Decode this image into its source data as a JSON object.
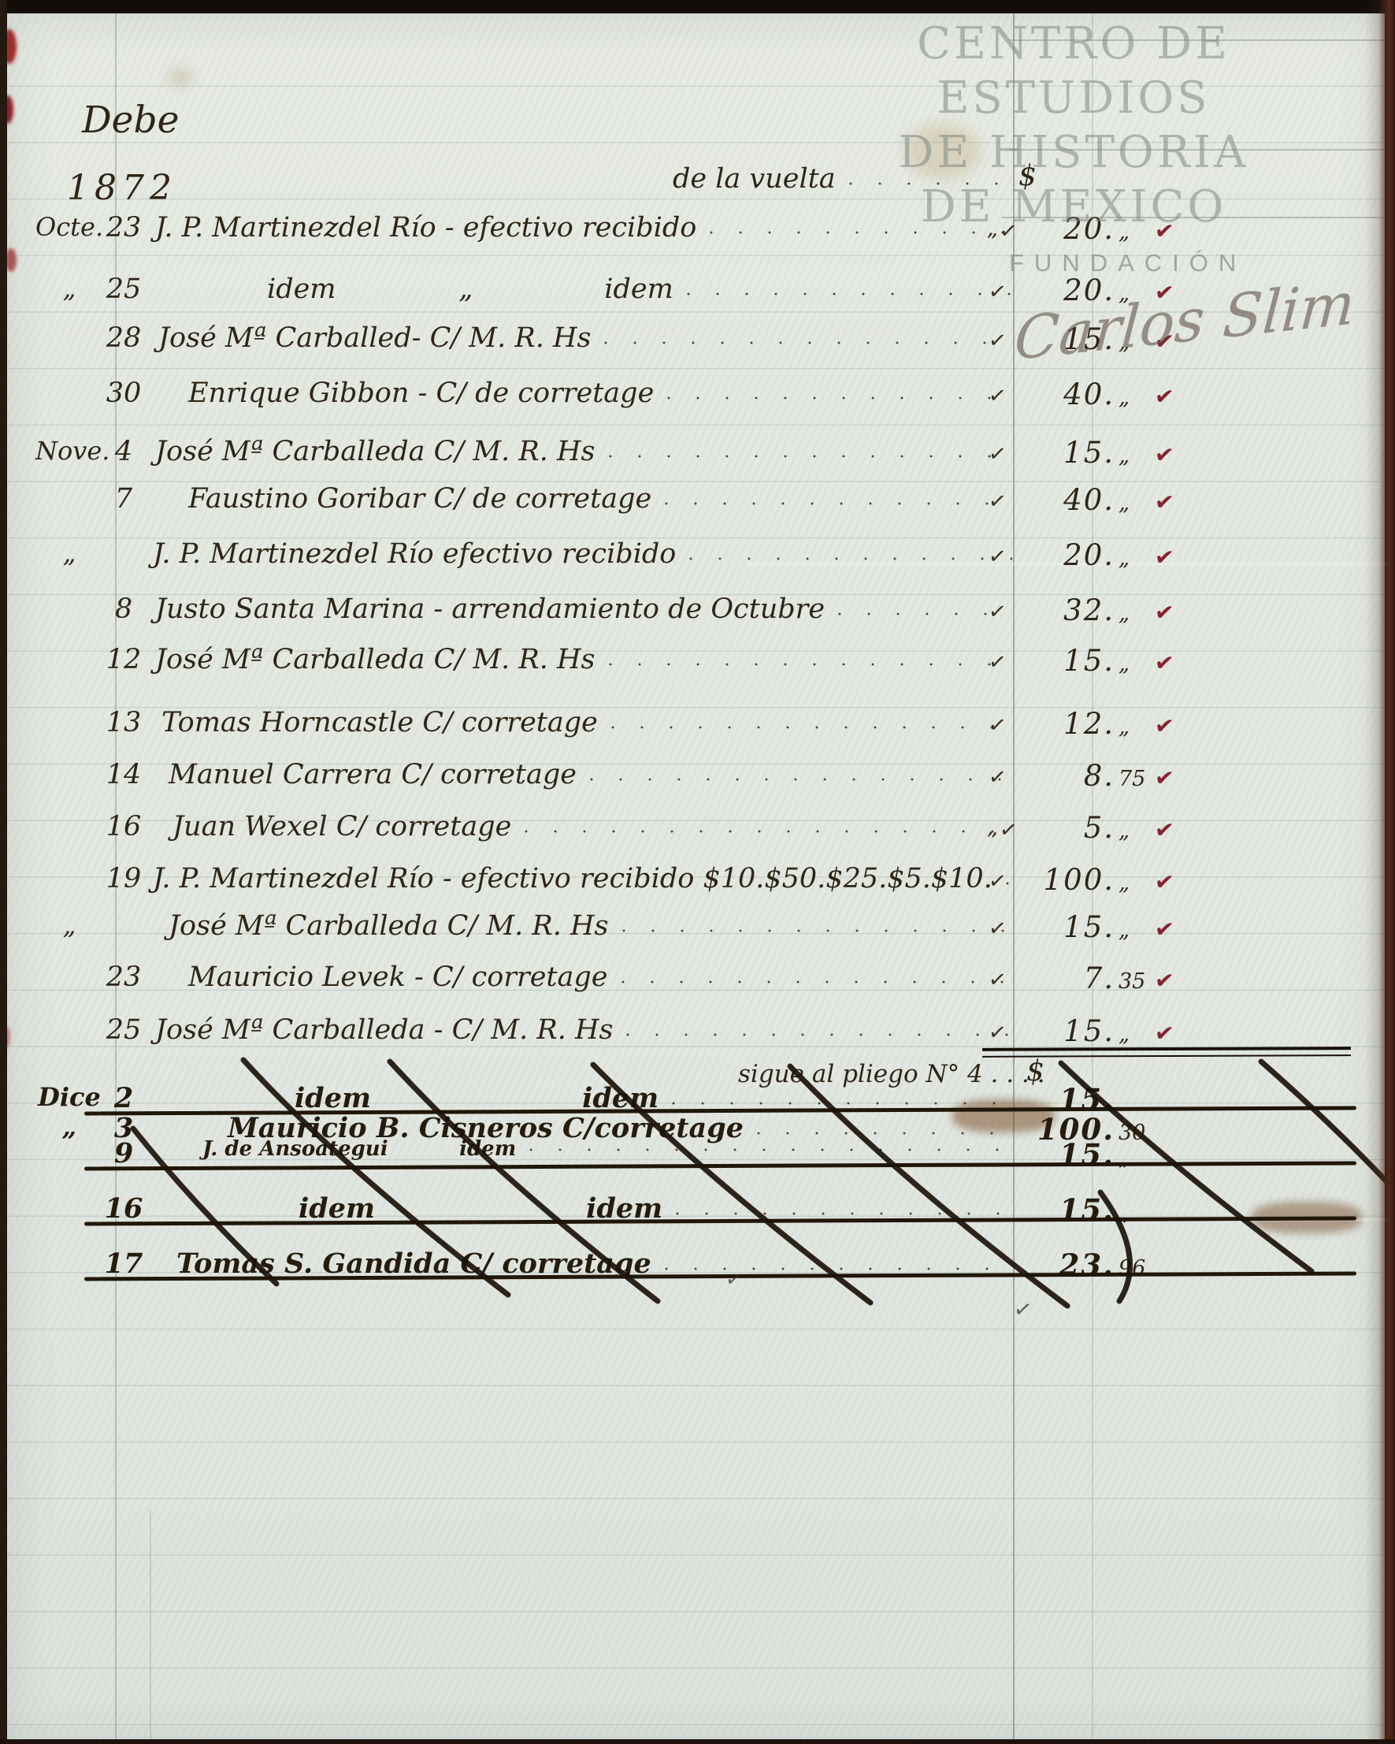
{
  "document": {
    "side_label": "Debe",
    "year": "1872",
    "watermark": {
      "line1": "CENTRO DE",
      "line2": "ESTUDIOS",
      "line3": "DE HISTORIA",
      "line4": "DE MEXICO",
      "foundation": "FUNDACIÓN",
      "signature": "Carlos Slim"
    },
    "ledger": {
      "currency_symbol": "$",
      "entries": [
        {
          "month": "",
          "day": "",
          "desc": "de la vuelta",
          "tick": "",
          "pesos": "",
          "cents": "",
          "check": false,
          "sym": "$"
        },
        {
          "month": "Octe.",
          "day": "23",
          "desc": "J. P. Martinezdel Río - efectivo recibido",
          "tick": "„✓",
          "pesos": "20.",
          "cents": "„",
          "check": true,
          "sym": ""
        },
        {
          "month": "„",
          "day": "25",
          "desc": "idem              „               idem",
          "tick": "✓",
          "pesos": "20.",
          "cents": "„",
          "check": true,
          "sym": ""
        },
        {
          "month": "",
          "day": "28",
          "desc": "José Mª Carballed- C/ M. R. Hs",
          "tick": "✓",
          "pesos": "15.",
          "cents": "„",
          "check": true,
          "sym": ""
        },
        {
          "month": "",
          "day": "30",
          "desc": "Enrique Gibbon - C/ de corretage",
          "tick": "✓",
          "pesos": "40.",
          "cents": "„",
          "check": true,
          "sym": ""
        },
        {
          "month": "Nove.",
          "day": "4",
          "desc": "José Mª Carballeda C/ M. R. Hs",
          "tick": "✓",
          "pesos": "15.",
          "cents": "„",
          "check": true,
          "sym": ""
        },
        {
          "month": "",
          "day": "7",
          "desc": "Faustino Goribar C/ de corretage",
          "tick": "✓",
          "pesos": "40.",
          "cents": "„",
          "check": true,
          "sym": ""
        },
        {
          "month": "„",
          "day": "",
          "desc": "J. P. Martinezdel Río efectivo recibido",
          "tick": "✓",
          "pesos": "20.",
          "cents": "„",
          "check": true,
          "sym": ""
        },
        {
          "month": "",
          "day": "8",
          "desc": "Justo Santa Marina - arrendamiento de Octubre",
          "tick": "✓",
          "pesos": "32.",
          "cents": "„",
          "check": true,
          "sym": ""
        },
        {
          "month": "",
          "day": "12",
          "desc": "José Mª Carballeda C/ M. R. Hs",
          "tick": "✓",
          "pesos": "15.",
          "cents": "„",
          "check": true,
          "sym": ""
        },
        {
          "month": "",
          "day": "13",
          "desc": "Tomas Horncastle C/ corretage",
          "tick": "✓",
          "pesos": "12.",
          "cents": "„",
          "check": true,
          "sym": ""
        },
        {
          "month": "",
          "day": "14",
          "desc": "Manuel Carrera C/ corretage",
          "tick": "✓",
          "pesos": "8.",
          "cents": "75",
          "check": true,
          "sym": ""
        },
        {
          "month": "",
          "day": "16",
          "desc": "Juan Wexel C/ corretage",
          "tick": "„✓",
          "pesos": "5.",
          "cents": "„",
          "check": true,
          "sym": ""
        },
        {
          "month": "",
          "day": "19",
          "desc": "J. P. Martinezdel Río - efectivo recibido $10.$50.$25.$5.$10.",
          "tick": "✓",
          "pesos": "100.",
          "cents": "„",
          "check": true,
          "sym": ""
        },
        {
          "month": "„",
          "day": "",
          "desc": "José Mª Carballeda C/ M. R. Hs",
          "tick": "✓",
          "pesos": "15.",
          "cents": "„",
          "check": true,
          "sym": ""
        },
        {
          "month": "",
          "day": "23",
          "desc": "Mauricio Levek - C/ corretage",
          "tick": "✓",
          "pesos": "7.",
          "cents": "35",
          "check": true,
          "sym": ""
        },
        {
          "month": "",
          "day": "25",
          "desc": "José Mª Carballeda - C/ M. R. Hs",
          "tick": "✓",
          "pesos": "15.",
          "cents": "„",
          "check": true,
          "sym": ""
        }
      ],
      "carry_note": {
        "text": "sigue al pliego N° 4 . . . .",
        "symbol": "$"
      },
      "struck_entries": [
        {
          "month": "Dice",
          "day": "2",
          "desc": "idem                      idem",
          "pesos": "15.",
          "cents": "",
          "strike": true
        },
        {
          "month": "„",
          "day": "3",
          "desc": "Mauricio B. Cisneros C/corretage",
          "pesos": "100.",
          "cents": "30",
          "strike": false
        },
        {
          "month": "",
          "day": "9",
          "desc": "J. de Ansoategui          idem",
          "pesos": "15.",
          "cents": "„",
          "strike": true
        },
        {
          "month": "",
          "day": "16",
          "desc": "idem                      idem",
          "pesos": "15.",
          "cents": "„",
          "strike": true
        },
        {
          "month": "",
          "day": "17",
          "desc": "Tomas S. Gandida C/ corretage",
          "pesos": "23.",
          "cents": "96",
          "strike": true
        }
      ]
    }
  }
}
